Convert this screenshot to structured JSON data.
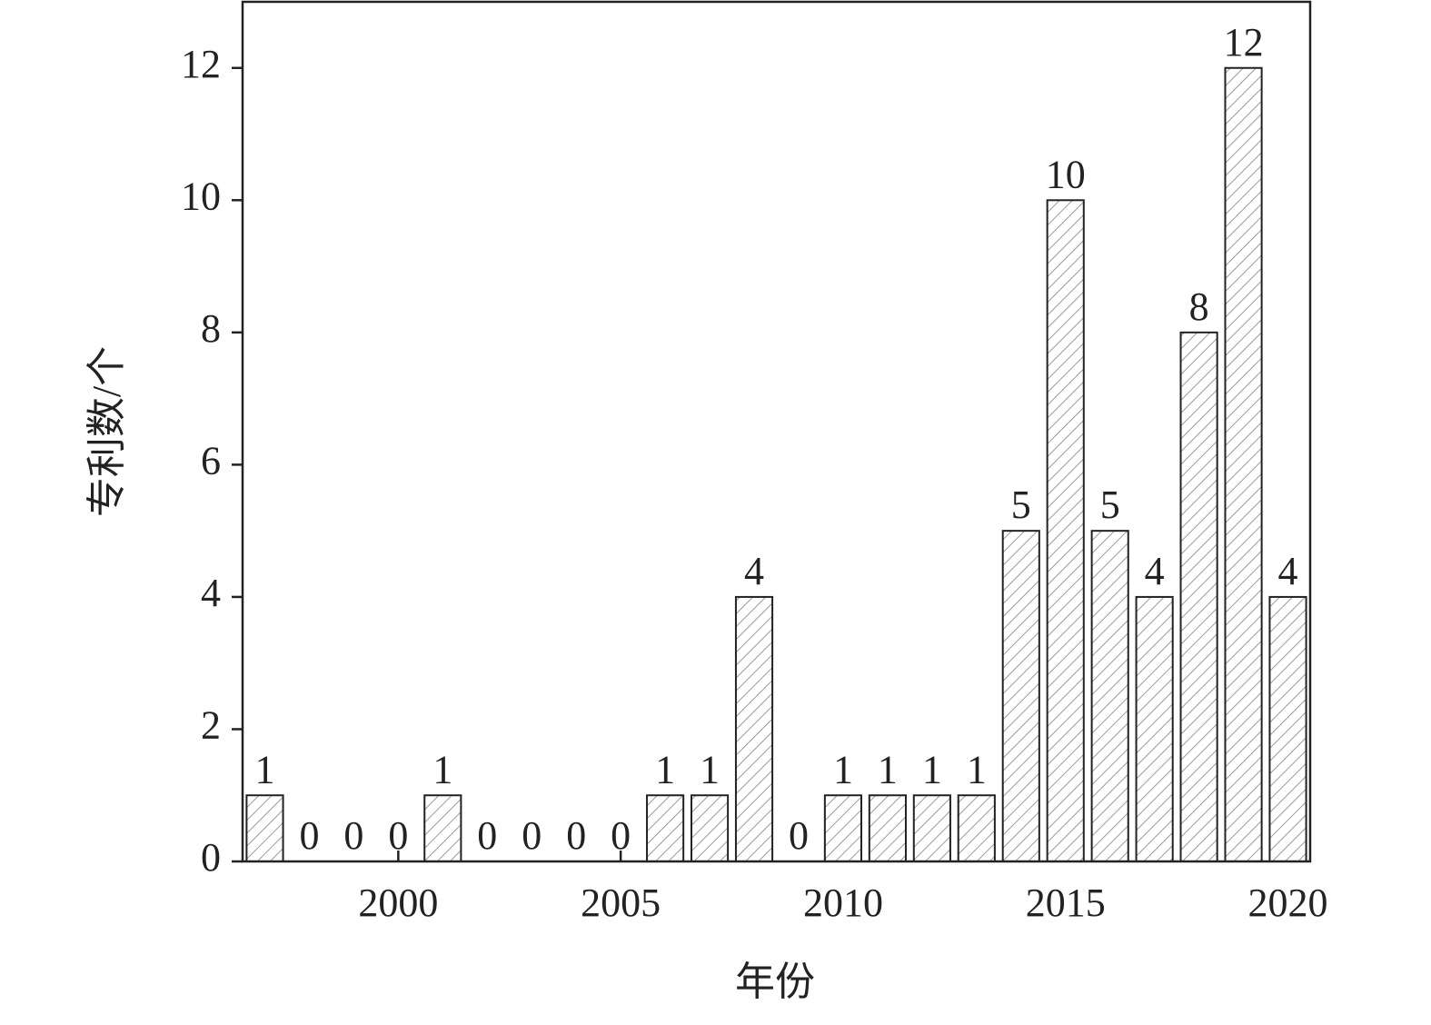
{
  "chart_data": {
    "type": "bar",
    "x_label": "年份",
    "y_label": "专利数/个",
    "x": [
      1997,
      1998,
      1999,
      2000,
      2001,
      2002,
      2003,
      2004,
      2005,
      2006,
      2007,
      2008,
      2009,
      2010,
      2011,
      2012,
      2013,
      2014,
      2015,
      2016,
      2017,
      2018,
      2019,
      2020
    ],
    "values": [
      1,
      0,
      0,
      0,
      1,
      0,
      0,
      0,
      0,
      1,
      1,
      4,
      0,
      1,
      1,
      1,
      1,
      5,
      10,
      5,
      4,
      8,
      12,
      4
    ],
    "color": "#9a9a9a",
    "xlim": [
      1996.5,
      2020.5
    ],
    "xticks": [
      2000,
      2005,
      2010,
      2015,
      2020
    ],
    "ylim": [
      0,
      13
    ],
    "yticks": [
      0,
      2,
      4,
      6,
      8,
      10,
      12
    ]
  }
}
